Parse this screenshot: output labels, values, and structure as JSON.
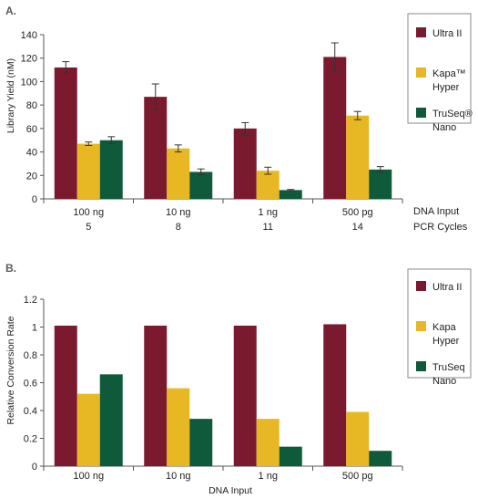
{
  "chart_data": [
    {
      "panel_label": "A.",
      "type": "bar",
      "categories": [
        "100 ng",
        "10 ng",
        "1 ng",
        "500 pg"
      ],
      "categories_line2": [
        "5",
        "8",
        "11",
        "14"
      ],
      "category_caption": "DNA Input",
      "category_caption_line2": "PCR Cycles",
      "ylabel": "Library Yield (nM)",
      "ylim": [
        0,
        140
      ],
      "yticks": [
        "0",
        "20",
        "40",
        "60",
        "80",
        "100",
        "120",
        "140"
      ],
      "error_bars": true,
      "legend_placement": "right",
      "series": [
        {
          "name": "Ultra II",
          "name_line2": "",
          "color": "#7b1a2e",
          "values": [
            112,
            87,
            60,
            121
          ],
          "errors": [
            5,
            11,
            5,
            12
          ]
        },
        {
          "name": "Kapa™",
          "name_line2": "Hyper",
          "color": "#e8b824",
          "values": [
            47,
            43,
            24,
            71
          ],
          "errors": [
            1.5,
            3,
            3,
            3.5
          ]
        },
        {
          "name": "TruSeq®",
          "name_line2": "Nano",
          "color": "#0f5a3a",
          "values": [
            50,
            23,
            7.5,
            25
          ],
          "errors": [
            3,
            2.5,
            0.5,
            2.5
          ]
        }
      ]
    },
    {
      "panel_label": "B.",
      "type": "bar",
      "categories": [
        "100 ng",
        "10 ng",
        "1 ng",
        "500 pg"
      ],
      "xlabel": "DNA Input",
      "ylabel": "Relative Conversion Rate",
      "ylim": [
        0,
        1.2
      ],
      "yticks": [
        "0",
        "0.2",
        "0.4",
        "0.6",
        "0.8",
        "1",
        "1.2"
      ],
      "error_bars": false,
      "legend_placement": "right",
      "series": [
        {
          "name": "Ultra II",
          "name_line2": "",
          "color": "#7b1a2e",
          "values": [
            1.01,
            1.01,
            1.01,
            1.02
          ]
        },
        {
          "name": "Kapa",
          "name_line2": "Hyper",
          "color": "#e8b824",
          "values": [
            0.52,
            0.56,
            0.34,
            0.39
          ]
        },
        {
          "name": "TruSeq",
          "name_line2": "Nano",
          "color": "#0f5a3a",
          "values": [
            0.66,
            0.34,
            0.14,
            0.11
          ]
        }
      ]
    }
  ]
}
